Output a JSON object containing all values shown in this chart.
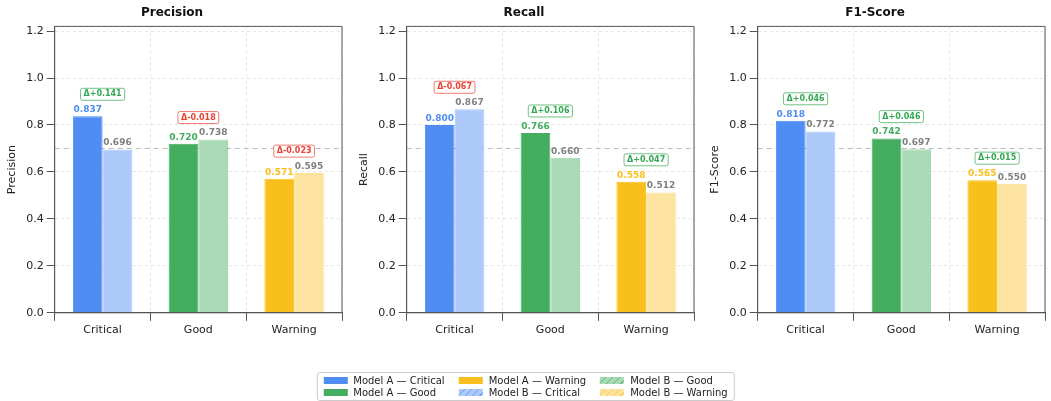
{
  "chart_data": [
    {
      "type": "bar",
      "title": "Precision",
      "ylabel": "Precision",
      "categories": [
        "Critical",
        "Good",
        "Warning"
      ],
      "ylim": [
        0,
        1.22
      ],
      "yticks": [
        {
          "value": 0,
          "label": "0.0"
        },
        {
          "value": 0.2,
          "label": "0.2"
        },
        {
          "value": 0.4,
          "label": "0.4"
        },
        {
          "value": 0.6,
          "label": "0.6"
        },
        {
          "value": 0.8,
          "label": "0.8"
        },
        {
          "value": 1,
          "label": "1.0"
        },
        {
          "value": 1.2,
          "label": "1.2"
        }
      ],
      "grid": true,
      "series": [
        {
          "color": "#4f8df5",
          "values": [
            0.837,
            null,
            null
          ],
          "value_labels": [
            "0.837",
            null,
            null
          ]
        },
        {
          "color": "#44ad5f",
          "values": [
            null,
            0.72,
            null
          ],
          "value_labels": [
            null,
            "0.720",
            null
          ]
        },
        {
          "color": "#f9c01d",
          "values": [
            null,
            null,
            0.571
          ],
          "value_labels": [
            null,
            null,
            "0.571"
          ]
        },
        {
          "color": "#adc9f9",
          "values": [
            0.696,
            null,
            null
          ],
          "value_labels": [
            "0.696",
            null,
            null
          ]
        },
        {
          "color": "#a9dab5",
          "values": [
            null,
            0.738,
            null
          ],
          "value_labels": [
            null,
            "0.738",
            null
          ]
        },
        {
          "color": "#fce3a0",
          "values": [
            null,
            null,
            0.595
          ],
          "value_labels": [
            null,
            null,
            "0.595"
          ]
        }
      ],
      "ref_lines": [
        {
          "axis": "y",
          "value": 0.7,
          "color": "#bbbbbb",
          "line_style": "dashed"
        }
      ],
      "annotations": [
        {
          "text": "Δ+0.141",
          "x": "Critical",
          "y": 0.837
        },
        {
          "text": "Δ-0.018",
          "x": "Good",
          "y": 0.738
        },
        {
          "text": "Δ-0.023",
          "x": "Warning",
          "y": 0.595
        }
      ]
    },
    {
      "type": "bar",
      "title": "Recall",
      "ylabel": "Recall",
      "categories": [
        "Critical",
        "Good",
        "Warning"
      ],
      "ylim": [
        0,
        1.22
      ],
      "yticks": [
        {
          "value": 0,
          "label": "0.0"
        },
        {
          "value": 0.2,
          "label": "0.2"
        },
        {
          "value": 0.4,
          "label": "0.4"
        },
        {
          "value": 0.6,
          "label": "0.6"
        },
        {
          "value": 0.8,
          "label": "0.8"
        },
        {
          "value": 1,
          "label": "1.0"
        },
        {
          "value": 1.2,
          "label": "1.2"
        }
      ],
      "grid": true,
      "legend": "bottom",
      "series": [
        {
          "name": "Model A — Critical",
          "color": "#4f8df5",
          "values": [
            0.8,
            null,
            null
          ],
          "value_labels": [
            "0.800",
            null,
            null
          ]
        },
        {
          "name": "Model A — Good",
          "color": "#44ad5f",
          "values": [
            null,
            0.766,
            null
          ],
          "value_labels": [
            null,
            "0.766",
            null
          ]
        },
        {
          "name": "Model A — Warning",
          "color": "#f9c01d",
          "values": [
            null,
            null,
            0.558
          ],
          "value_labels": [
            null,
            null,
            "0.558"
          ]
        },
        {
          "name": "Model B — Critical",
          "color": "#adc9f9",
          "values": [
            0.867,
            null,
            null
          ],
          "value_labels": [
            "0.867",
            null,
            null
          ]
        },
        {
          "name": "Model B — Good",
          "color": "#a9dab5",
          "values": [
            null,
            0.66,
            null
          ],
          "value_labels": [
            null,
            "0.660",
            null
          ]
        },
        {
          "name": "Model B — Warning",
          "color": "#fce3a0",
          "values": [
            null,
            null,
            0.512
          ],
          "value_labels": [
            null,
            null,
            "0.512"
          ]
        }
      ],
      "ref_lines": [
        {
          "axis": "y",
          "value": 0.7,
          "color": "#bbbbbb",
          "line_style": "dashed"
        }
      ],
      "annotations": [
        {
          "text": "Δ-0.067",
          "x": "Critical",
          "y": 0.867
        },
        {
          "text": "Δ+0.106",
          "x": "Good",
          "y": 0.766
        },
        {
          "text": "Δ+0.047",
          "x": "Warning",
          "y": 0.558
        }
      ]
    },
    {
      "type": "bar",
      "title": "F1-Score",
      "ylabel": "F1-Score",
      "categories": [
        "Critical",
        "Good",
        "Warning"
      ],
      "ylim": [
        0,
        1.22
      ],
      "yticks": [
        {
          "value": 0,
          "label": "0.0"
        },
        {
          "value": 0.2,
          "label": "0.2"
        },
        {
          "value": 0.4,
          "label": "0.4"
        },
        {
          "value": 0.6,
          "label": "0.6"
        },
        {
          "value": 0.8,
          "label": "0.8"
        },
        {
          "value": 1,
          "label": "1.0"
        },
        {
          "value": 1.2,
          "label": "1.2"
        }
      ],
      "grid": true,
      "series": [
        {
          "color": "#4f8df5",
          "values": [
            0.818,
            null,
            null
          ],
          "value_labels": [
            "0.818",
            null,
            null
          ]
        },
        {
          "color": "#44ad5f",
          "values": [
            null,
            0.742,
            null
          ],
          "value_labels": [
            null,
            "0.742",
            null
          ]
        },
        {
          "color": "#f9c01d",
          "values": [
            null,
            null,
            0.565
          ],
          "value_labels": [
            null,
            null,
            "0.565"
          ]
        },
        {
          "color": "#adc9f9",
          "values": [
            0.772,
            null,
            null
          ],
          "value_labels": [
            "0.772",
            null,
            null
          ]
        },
        {
          "color": "#a9dab5",
          "values": [
            null,
            0.697,
            null
          ],
          "value_labels": [
            null,
            "0.697",
            null
          ]
        },
        {
          "color": "#fce3a0",
          "values": [
            null,
            null,
            0.55
          ],
          "value_labels": [
            null,
            null,
            "0.550"
          ]
        }
      ],
      "ref_lines": [
        {
          "axis": "y",
          "value": 0.7,
          "color": "#bbbbbb",
          "line_style": "dashed"
        }
      ],
      "annotations": [
        {
          "text": "Δ+0.046",
          "x": "Critical",
          "y": 0.818
        },
        {
          "text": "Δ+0.046",
          "x": "Good",
          "y": 0.742
        },
        {
          "text": "Δ+0.015",
          "x": "Warning",
          "y": 0.565
        }
      ]
    }
  ]
}
